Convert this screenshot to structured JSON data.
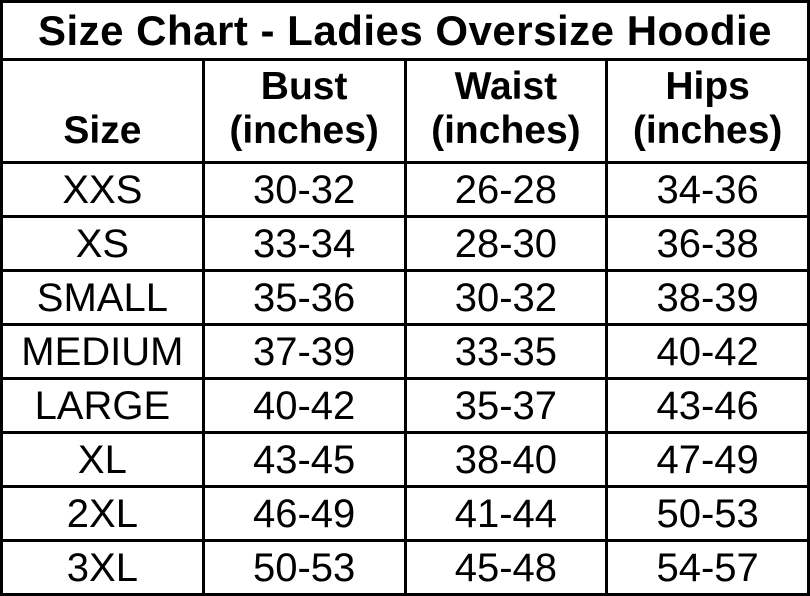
{
  "colors": {
    "text": "#000000",
    "background": "#ffffff",
    "border": "#000000"
  },
  "headers": [
    {
      "line1": "Size",
      "line2": ""
    },
    {
      "line1": "Bust",
      "line2": "(inches)"
    },
    {
      "line1": "Waist",
      "line2": "(inches)"
    },
    {
      "line1": "Hips",
      "line2": "(inches)"
    }
  ],
  "chart_data": {
    "type": "table",
    "title": "Size Chart - Ladies Oversize Hoodie",
    "columns": [
      "Size",
      "Bust (inches)",
      "Waist (inches)",
      "Hips (inches)"
    ],
    "rows": [
      [
        "XXS",
        "30-32",
        "26-28",
        "34-36"
      ],
      [
        "XS",
        "33-34",
        "28-30",
        "36-38"
      ],
      [
        "SMALL",
        "35-36",
        "30-32",
        "38-39"
      ],
      [
        "MEDIUM",
        "37-39",
        "33-35",
        "40-42"
      ],
      [
        "LARGE",
        "40-42",
        "35-37",
        "43-46"
      ],
      [
        "XL",
        "43-45",
        "38-40",
        "47-49"
      ],
      [
        "2XL",
        "46-49",
        "41-44",
        "50-53"
      ],
      [
        "3XL",
        "50-53",
        "45-48",
        "54-57"
      ]
    ]
  }
}
